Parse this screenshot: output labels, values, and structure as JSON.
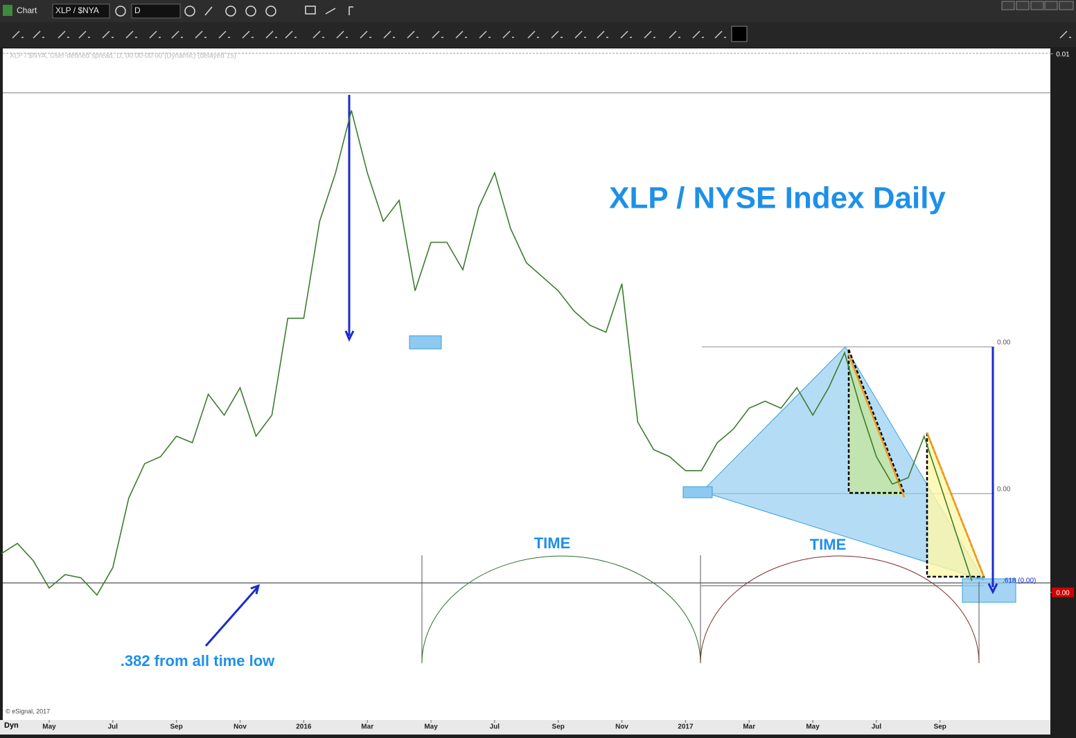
{
  "app": {
    "window_title": "Chart",
    "symbol": "XLP / $NYA",
    "interval": "D",
    "mode": "Dyn"
  },
  "chart_data": {
    "type": "line",
    "title": "XLP / NYSE Index Daily",
    "study_header": "XLP / $NYA, User-defined spread, D, 00:00-00:00 (Dynamic) (delayed 15)",
    "copyright": "© eSignal, 2017",
    "color": "#3a7d2c",
    "categories": [
      null,
      null,
      null,
      "May",
      null,
      null,
      null,
      "Jul",
      null,
      null,
      null,
      "Sep",
      null,
      null,
      null,
      "Nov",
      null,
      null,
      null,
      "2016",
      null,
      null,
      null,
      "Mar",
      null,
      null,
      null,
      "May",
      null,
      null,
      null,
      "Jul",
      null,
      null,
      null,
      "Sep",
      null,
      null,
      null,
      "Nov",
      null,
      null,
      null,
      "2017",
      null,
      null,
      null,
      "Mar",
      null,
      null,
      null,
      "May",
      null,
      null,
      null,
      "Jul",
      null,
      null,
      null,
      "Sep",
      null,
      null
    ],
    "values": [
      0.00072,
      0.00091,
      0.00059,
      8e-05,
      0.00033,
      0.00027,
      -5e-05,
      0.00046,
      0.00175,
      0.00239,
      0.00252,
      0.0029,
      0.00278,
      0.00368,
      0.00329,
      0.0038,
      0.0029,
      0.00329,
      0.00509,
      0.00509,
      0.00689,
      0.00779,
      0.00895,
      0.00779,
      0.00689,
      0.00728,
      0.0056,
      0.0065,
      0.0065,
      0.00599,
      0.00715,
      0.00779,
      0.00676,
      0.00612,
      0.00586,
      0.0056,
      0.00522,
      0.00496,
      0.00483,
      0.00573,
      0.00316,
      0.00265,
      0.00252,
      0.00226,
      0.00226,
      0.00278,
      0.00303,
      0.00342,
      0.00355,
      0.00342,
      0.0038,
      0.00329,
      0.0038,
      0.00445,
      0.00342,
      0.00252,
      0.00201,
      0.00213,
      0.0029,
      0.00201,
      0.00111,
      0.00021
    ],
    "ylim": [
      -0.00237,
      0.0101
    ],
    "yticks": [
      {
        "value": 0.01,
        "label": "0.01"
      },
      {
        "value": 0,
        "label": "0.00"
      }
    ],
    "annotations": [
      "TIME",
      "TIME",
      ".382 from all time low",
      "0.00",
      "0.00",
      ".618 (0.00)"
    ]
  }
}
